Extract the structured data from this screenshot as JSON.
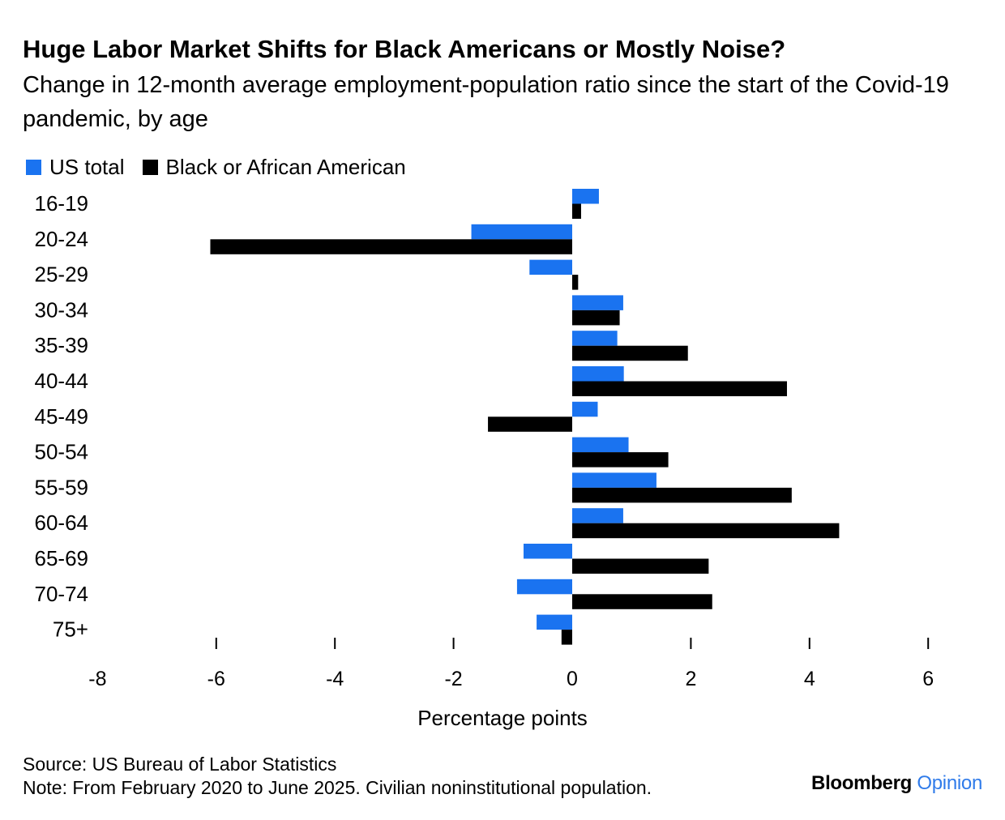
{
  "header": {
    "title": "Huge Labor Market Shifts for Black Americans or Mostly Noise?",
    "subtitle": "Change in 12-month average employment-population ratio since the start of the Covid-19 pandemic, by age"
  },
  "colors": {
    "us_total": "#1a73f0",
    "black": "#000000",
    "axis": "#000000"
  },
  "chart_data": {
    "type": "bar",
    "orientation": "horizontal",
    "categories": [
      "16-19",
      "20-24",
      "25-29",
      "30-34",
      "35-39",
      "40-44",
      "45-49",
      "50-54",
      "55-59",
      "60-64",
      "65-69",
      "70-74",
      "75+"
    ],
    "series": [
      {
        "name": "US total",
        "values": [
          0.45,
          -1.7,
          -0.72,
          0.86,
          0.76,
          0.87,
          0.43,
          0.95,
          1.42,
          0.86,
          -0.82,
          -0.93,
          -0.6
        ]
      },
      {
        "name": "Black or African American",
        "values": [
          0.15,
          -6.1,
          0.1,
          0.8,
          1.95,
          3.62,
          -1.42,
          1.62,
          3.7,
          4.5,
          2.3,
          2.36,
          -0.18
        ]
      }
    ],
    "x_ticks": [
      -8,
      -6,
      -4,
      -2,
      0,
      2,
      4,
      6
    ],
    "x_tick_labels": [
      "-8",
      "-6",
      "-4",
      "-2",
      "0",
      "2",
      "4",
      "6"
    ],
    "xlim": [
      -8,
      6
    ],
    "xlabel": "Percentage points",
    "legend_position": "top-left"
  },
  "footer": {
    "source": "Source: US Bureau of Labor Statistics",
    "note": "Note: From February 2020 to June 2025. Civilian noninstitutional population."
  },
  "brand": {
    "name": "Bloomberg",
    "section": "Opinion"
  }
}
